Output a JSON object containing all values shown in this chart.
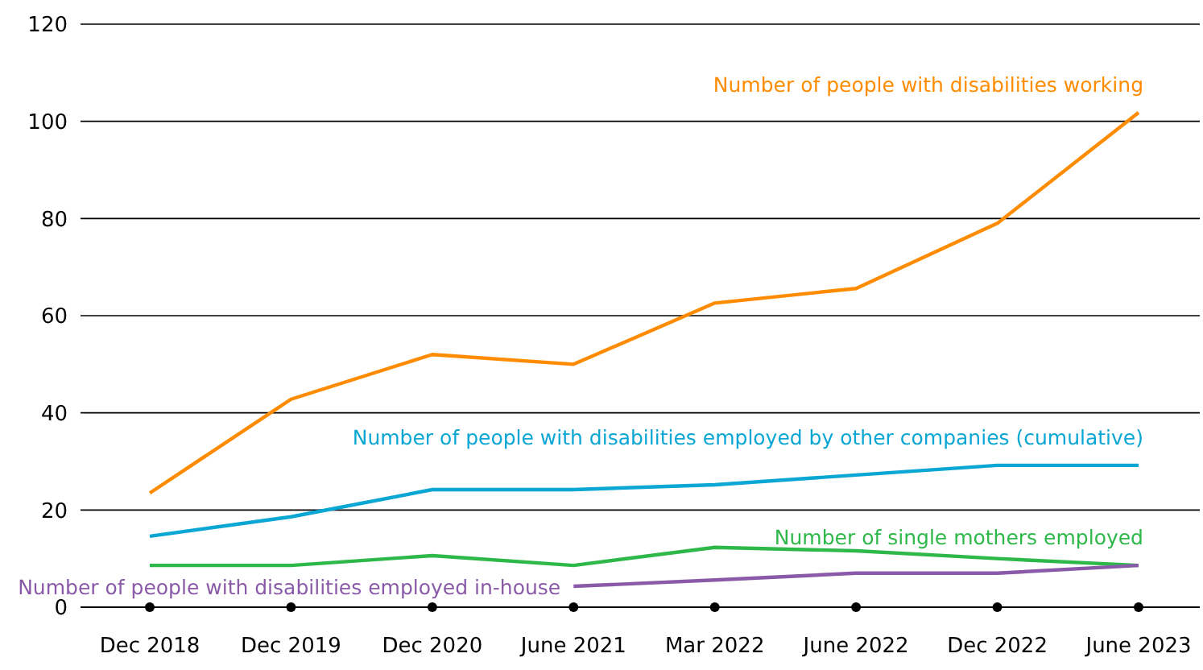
{
  "chart_data": {
    "type": "line",
    "categories": [
      "Dec 2018",
      "Dec 2019",
      "Dec 2020",
      "June 2021",
      "Mar 2022",
      "June 2022",
      "Dec 2022",
      "June 2023"
    ],
    "series": [
      {
        "name": "Number of people with disabilities working",
        "color": "#ff8c00",
        "values": [
          23.5,
          42.8,
          52,
          50,
          62.6,
          65.6,
          79,
          101.8
        ]
      },
      {
        "name": "Number of people with disabilities employed by other companies (cumulative)",
        "color": "#0aa6d4",
        "values": [
          14.6,
          18.6,
          24.2,
          24.2,
          25.2,
          27.2,
          29.2,
          29.2
        ]
      },
      {
        "name": "Number of single mothers employed",
        "color": "#2fb84a",
        "values": [
          8.6,
          8.6,
          10.6,
          8.6,
          12.3,
          11.6,
          10,
          8.6
        ]
      },
      {
        "name": "Number of people with disabilities employed in-house",
        "color": "#8a5aa8",
        "values": [
          null,
          null,
          null,
          4.3,
          5.6,
          7,
          7,
          8.6
        ]
      }
    ],
    "ylim": [
      0,
      120
    ],
    "yticks": [
      0,
      20,
      40,
      60,
      80,
      100,
      120
    ],
    "grid": "y",
    "legend": false,
    "marker": "none",
    "line_style": "solid"
  }
}
